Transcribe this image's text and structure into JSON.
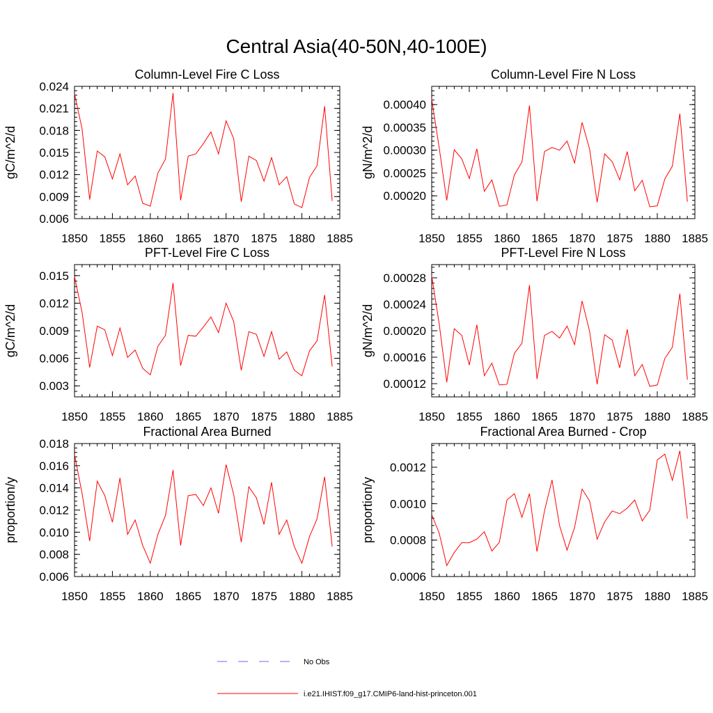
{
  "title": "Central Asia(40-50N,40-100E)",
  "legend": {
    "obs_label": "No Obs",
    "obs_color": "#6a6aff",
    "model_label": "i.e21.IHIST.f09_g17.CMIP6-land-hist-princeton.001",
    "model_color": "#ff0000"
  },
  "chart_data": [
    {
      "type": "line",
      "title": "Column-Level Fire C Loss",
      "ylabel": "gC/m^2/d",
      "xlim": [
        1850,
        1885
      ],
      "ylim": [
        0.006,
        0.024
      ],
      "xticks": [
        "1850",
        "1855",
        "1860",
        "1865",
        "1870",
        "1875",
        "1880",
        "1885"
      ],
      "yticks": [
        "0.006",
        "0.009",
        "0.012",
        "0.015",
        "0.018",
        "0.021",
        "0.024"
      ],
      "x": [
        1850,
        1851,
        1852,
        1853,
        1854,
        1855,
        1856,
        1857,
        1858,
        1859,
        1860,
        1861,
        1862,
        1863,
        1864,
        1865,
        1866,
        1867,
        1868,
        1869,
        1870,
        1871,
        1872,
        1873,
        1874,
        1875,
        1876,
        1877,
        1878,
        1879,
        1880,
        1881,
        1882,
        1883,
        1884
      ],
      "series": [
        {
          "color": "#ff0000",
          "values": [
            0.023,
            0.0182,
            0.0086,
            0.0152,
            0.0144,
            0.0114,
            0.0148,
            0.0106,
            0.0118,
            0.0081,
            0.0077,
            0.0122,
            0.0141,
            0.0231,
            0.0085,
            0.0145,
            0.0148,
            0.0162,
            0.0178,
            0.0148,
            0.0193,
            0.0169,
            0.0083,
            0.0145,
            0.0139,
            0.0111,
            0.0143,
            0.0106,
            0.0117,
            0.008,
            0.0075,
            0.0116,
            0.0132,
            0.0213,
            0.0084
          ]
        }
      ]
    },
    {
      "type": "line",
      "title": "Column-Level Fire N Loss",
      "ylabel": "gN/m^2/d",
      "xlim": [
        1850,
        1885
      ],
      "ylim": [
        0.00015,
        0.00044
      ],
      "xticks": [
        "1850",
        "1855",
        "1860",
        "1865",
        "1870",
        "1875",
        "1880",
        "1885"
      ],
      "yticks": [
        "0.00020",
        "0.00025",
        "0.00030",
        "0.00035",
        "0.00040"
      ],
      "yticks_at": [
        0.0002,
        0.00025,
        0.0003,
        0.00035,
        0.0004
      ],
      "x": [
        1850,
        1851,
        1852,
        1853,
        1854,
        1855,
        1856,
        1857,
        1858,
        1859,
        1860,
        1861,
        1862,
        1863,
        1864,
        1865,
        1866,
        1867,
        1868,
        1869,
        1870,
        1871,
        1872,
        1873,
        1874,
        1875,
        1876,
        1877,
        1878,
        1879,
        1880,
        1881,
        1882,
        1883,
        1884
      ],
      "series": [
        {
          "color": "#ff0000",
          "values": [
            0.000412,
            0.000305,
            0.00019,
            0.000301,
            0.000281,
            0.000238,
            0.000303,
            0.00021,
            0.000235,
            0.000177,
            0.00018,
            0.000246,
            0.000274,
            0.000398,
            0.000188,
            0.000297,
            0.000306,
            0.0003,
            0.00032,
            0.000272,
            0.000361,
            0.000302,
            0.000186,
            0.000292,
            0.000275,
            0.000235,
            0.000297,
            0.000211,
            0.000234,
            0.000176,
            0.000178,
            0.000237,
            0.000265,
            0.00038,
            0.000187
          ]
        }
      ]
    },
    {
      "type": "line",
      "title": "PFT-Level Fire C Loss",
      "ylabel": "gC/m^2/d",
      "xlim": [
        1850,
        1885
      ],
      "ylim": [
        0.0018,
        0.0162
      ],
      "xticks": [
        "1850",
        "1855",
        "1860",
        "1865",
        "1870",
        "1875",
        "1880",
        "1885"
      ],
      "yticks": [
        "0.003",
        "0.006",
        "0.009",
        "0.012",
        "0.015"
      ],
      "yticks_at": [
        0.003,
        0.006,
        0.009,
        0.012,
        0.015
      ],
      "x": [
        1850,
        1851,
        1852,
        1853,
        1854,
        1855,
        1856,
        1857,
        1858,
        1859,
        1860,
        1861,
        1862,
        1863,
        1864,
        1865,
        1866,
        1867,
        1868,
        1869,
        1870,
        1871,
        1872,
        1873,
        1874,
        1875,
        1876,
        1877,
        1878,
        1879,
        1880,
        1881,
        1882,
        1883,
        1884
      ],
      "series": [
        {
          "color": "#ff0000",
          "values": [
            0.0149,
            0.011,
            0.005,
            0.0095,
            0.0091,
            0.0063,
            0.0093,
            0.0061,
            0.0069,
            0.0049,
            0.0042,
            0.0073,
            0.0085,
            0.0142,
            0.0052,
            0.0085,
            0.0084,
            0.0094,
            0.0105,
            0.0088,
            0.012,
            0.01,
            0.0047,
            0.0089,
            0.0086,
            0.0062,
            0.0089,
            0.0059,
            0.0067,
            0.0047,
            0.0041,
            0.0068,
            0.0079,
            0.0129,
            0.0051
          ]
        }
      ]
    },
    {
      "type": "line",
      "title": "PFT-Level Fire N Loss",
      "ylabel": "gN/m^2/d",
      "xlim": [
        1850,
        1885
      ],
      "ylim": [
        0.0001,
        0.0003
      ],
      "xticks": [
        "1850",
        "1855",
        "1860",
        "1865",
        "1870",
        "1875",
        "1880",
        "1885"
      ],
      "yticks": [
        "0.00012",
        "0.00016",
        "0.00020",
        "0.00024",
        "0.00028"
      ],
      "yticks_at": [
        0.00012,
        0.00016,
        0.0002,
        0.00024,
        0.00028
      ],
      "x": [
        1850,
        1851,
        1852,
        1853,
        1854,
        1855,
        1856,
        1857,
        1858,
        1859,
        1860,
        1861,
        1862,
        1863,
        1864,
        1865,
        1866,
        1867,
        1868,
        1869,
        1870,
        1871,
        1872,
        1873,
        1874,
        1875,
        1876,
        1877,
        1878,
        1879,
        1880,
        1881,
        1882,
        1883,
        1884
      ],
      "series": [
        {
          "color": "#ff0000",
          "values": [
            0.000283,
            0.00021,
            0.000122,
            0.000203,
            0.000193,
            0.000148,
            0.000209,
            0.000132,
            0.000151,
            0.000118,
            0.000119,
            0.000166,
            0.000181,
            0.000269,
            0.000127,
            0.000193,
            0.000199,
            0.000189,
            0.000207,
            0.000179,
            0.000245,
            0.000199,
            0.000119,
            0.000194,
            0.000186,
            0.000144,
            0.000202,
            0.000132,
            0.000149,
            0.000116,
            0.000118,
            0.000158,
            0.000175,
            0.000256,
            0.000126
          ]
        }
      ]
    },
    {
      "type": "line",
      "title": "Fractional Area Burned",
      "ylabel": "proportion/y",
      "xlim": [
        1850,
        1885
      ],
      "ylim": [
        0.006,
        0.018
      ],
      "xticks": [
        "1850",
        "1855",
        "1860",
        "1865",
        "1870",
        "1875",
        "1880",
        "1885"
      ],
      "yticks": [
        "0.006",
        "0.008",
        "0.010",
        "0.012",
        "0.014",
        "0.016",
        "0.018"
      ],
      "yticks_at": [
        0.006,
        0.008,
        0.01,
        0.012,
        0.014,
        0.016,
        0.018
      ],
      "x": [
        1850,
        1851,
        1852,
        1853,
        1854,
        1855,
        1856,
        1857,
        1858,
        1859,
        1860,
        1861,
        1862,
        1863,
        1864,
        1865,
        1866,
        1867,
        1868,
        1869,
        1870,
        1871,
        1872,
        1873,
        1874,
        1875,
        1876,
        1877,
        1878,
        1879,
        1880,
        1881,
        1882,
        1883,
        1884
      ],
      "series": [
        {
          "color": "#ff0000",
          "values": [
            0.017,
            0.0135,
            0.0092,
            0.0146,
            0.0133,
            0.0109,
            0.0149,
            0.0098,
            0.0111,
            0.0088,
            0.0072,
            0.0098,
            0.0115,
            0.0156,
            0.0088,
            0.0133,
            0.0134,
            0.0124,
            0.014,
            0.0117,
            0.0161,
            0.0134,
            0.0091,
            0.0141,
            0.0131,
            0.0107,
            0.0145,
            0.0098,
            0.0111,
            0.0087,
            0.0072,
            0.0096,
            0.0112,
            0.015,
            0.0087
          ]
        }
      ]
    },
    {
      "type": "line",
      "title": "Fractional Area Burned - Crop",
      "ylabel": "proportion/y",
      "xlim": [
        1850,
        1885
      ],
      "ylim": [
        0.0006,
        0.00133
      ],
      "xticks": [
        "1850",
        "1855",
        "1860",
        "1865",
        "1870",
        "1875",
        "1880",
        "1885"
      ],
      "yticks": [
        "0.0006",
        "0.0008",
        "0.0010",
        "0.0012"
      ],
      "yticks_at": [
        0.0006,
        0.0008,
        0.001,
        0.0012
      ],
      "x": [
        1850,
        1851,
        1852,
        1853,
        1854,
        1855,
        1856,
        1857,
        1858,
        1859,
        1860,
        1861,
        1862,
        1863,
        1864,
        1865,
        1866,
        1867,
        1868,
        1869,
        1870,
        1871,
        1872,
        1873,
        1874,
        1875,
        1876,
        1877,
        1878,
        1879,
        1880,
        1881,
        1882,
        1883,
        1884
      ],
      "series": [
        {
          "color": "#ff0000",
          "values": [
            0.00094,
            0.000838,
            0.00066,
            0.000732,
            0.000786,
            0.000786,
            0.000805,
            0.000846,
            0.00074,
            0.000788,
            0.00102,
            0.001055,
            0.000925,
            0.001055,
            0.000737,
            0.00096,
            0.00113,
            0.00088,
            0.000745,
            0.00087,
            0.00108,
            0.001015,
            0.000805,
            0.0009,
            0.00096,
            0.000945,
            0.000975,
            0.00102,
            0.000905,
            0.000965,
            0.00124,
            0.001272,
            0.001128,
            0.00129,
            0.000918
          ]
        }
      ]
    }
  ]
}
